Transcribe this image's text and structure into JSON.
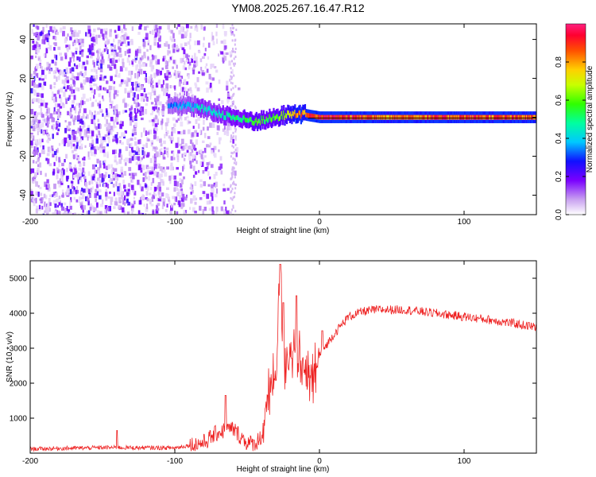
{
  "title": "YM08.2025.267.16.47.R12",
  "colors": {
    "signal": "#ee2222",
    "frame": "#000000",
    "background": "#ffffff"
  },
  "chart_data": [
    {
      "type": "heatmap",
      "name": "spectrogram",
      "xlabel": "Height of straight line (km)",
      "ylabel": "Frequency (Hz)",
      "xlim": [
        -200,
        150
      ],
      "ylim": [
        -50,
        48
      ],
      "x_ticks": [
        -200,
        -100,
        0,
        100
      ],
      "y_ticks": [
        -40,
        -20,
        0,
        20,
        40
      ],
      "colorbar": {
        "label": "Normalized spectral amplitude",
        "range": [
          0,
          1
        ],
        "ticks": [
          "0.0",
          "0.2",
          "0.4",
          "0.6",
          "0.8"
        ],
        "tick_values": [
          0.0,
          0.2,
          0.4,
          0.6,
          0.8
        ]
      },
      "description_series": [
        {
          "name": "noise region",
          "x_range": [
            -200,
            -60
          ]
        },
        {
          "name": "tracked Doppler line",
          "x_range": [
            -105,
            150
          ],
          "freq_center": 0
        }
      ],
      "ridge": {
        "x": [
          -105,
          -95,
          -85,
          -75,
          -65,
          -55,
          -45,
          -35,
          -25,
          -15,
          -8,
          0,
          50,
          100,
          150
        ],
        "freq": [
          7,
          6,
          5,
          3,
          1,
          -1,
          -2,
          -1,
          1,
          2,
          1,
          0,
          0,
          0,
          0
        ],
        "amp": [
          0.35,
          0.4,
          0.45,
          0.45,
          0.5,
          0.55,
          0.6,
          0.6,
          0.7,
          0.9,
          0.95,
          1.0,
          0.9,
          0.95,
          0.9
        ]
      }
    },
    {
      "type": "line",
      "name": "snr",
      "xlabel": "Height of straight line (km)",
      "ylabel": "SNR (10 * v/v)",
      "xlim": [
        -200,
        150
      ],
      "ylim": [
        0,
        5500
      ],
      "x_ticks": [
        -200,
        -100,
        0,
        100
      ],
      "y_ticks": [
        1000,
        2000,
        3000,
        4000,
        5000
      ],
      "series": [
        {
          "name": "SNR",
          "x": [
            -200,
            -150,
            -100,
            -80,
            -70,
            -60,
            -55,
            -50,
            -45,
            -40,
            -35,
            -30,
            -27,
            -25,
            -20,
            -15,
            -10,
            -5,
            0,
            10,
            20,
            30,
            40,
            60,
            80,
            100,
            120,
            150
          ],
          "values": [
            120,
            160,
            150,
            300,
            600,
            700,
            500,
            300,
            250,
            500,
            1600,
            2200,
            5200,
            2500,
            3000,
            2800,
            2200,
            2000,
            2800,
            3400,
            3900,
            4050,
            4100,
            4100,
            4000,
            3900,
            3800,
            3600
          ],
          "spikes": [
            {
              "x": -140,
              "value": 650
            },
            {
              "x": -65,
              "value": 1650
            },
            {
              "x": -27,
              "value": 5400
            },
            {
              "x": -25,
              "value": 4300
            },
            {
              "x": -16,
              "value": 4500
            },
            {
              "x": 2,
              "value": 3500
            }
          ]
        }
      ]
    }
  ]
}
